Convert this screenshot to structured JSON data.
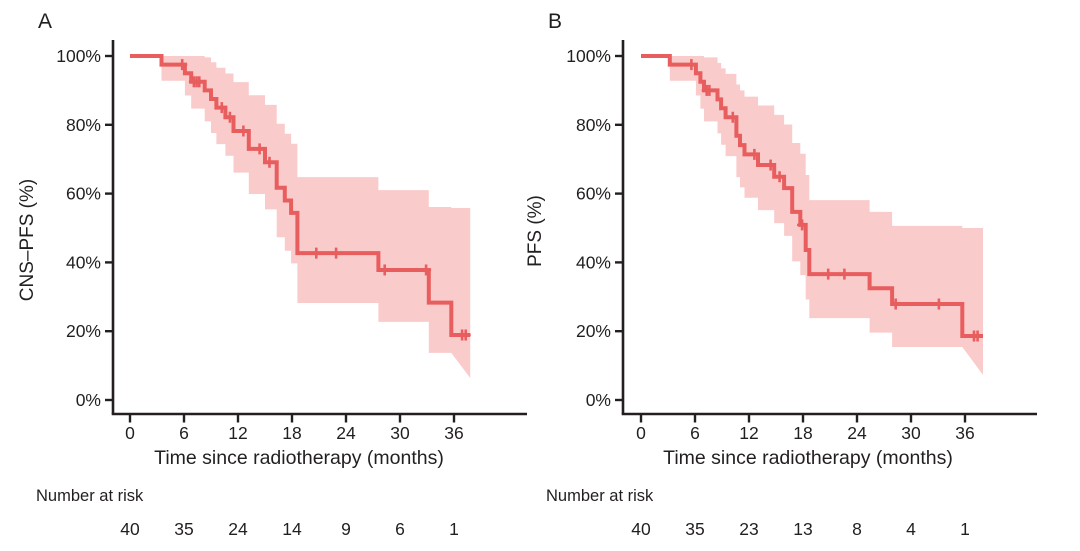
{
  "figure": {
    "background": "#ffffff",
    "text_color": "#231f20",
    "axis_color": "#231f20",
    "curve_color": "#e85d5e",
    "band_color": "#facbcb"
  },
  "chart_data": [
    {
      "type": "line",
      "subtype": "kaplan-meier-step",
      "panel_letter": "A",
      "ylabel": "CNS–PFS (%)",
      "xlabel": "Time since radiotherapy (months)",
      "risk_label": "Number at risk",
      "xlim": [
        0,
        38
      ],
      "ylim": [
        0,
        100
      ],
      "x_ticks": [
        0,
        6,
        12,
        18,
        24,
        30,
        36
      ],
      "y_ticks": [
        0,
        20,
        40,
        60,
        80,
        100
      ],
      "y_tick_labels": [
        "0%",
        "20%",
        "40%",
        "60%",
        "80%",
        "100%"
      ],
      "grid": false,
      "legend": "none",
      "steps": [
        [
          0,
          100
        ],
        [
          3.5,
          97.5
        ],
        [
          6.1,
          95.0
        ],
        [
          6.8,
          92.5
        ],
        [
          8.3,
          90.0
        ],
        [
          9.0,
          87.5
        ],
        [
          9.6,
          85.0
        ],
        [
          10.6,
          82.2
        ],
        [
          11.5,
          78.2
        ],
        [
          13.2,
          73.0
        ],
        [
          15.0,
          69.1
        ],
        [
          16.3,
          61.7
        ],
        [
          17.2,
          58.0
        ],
        [
          17.9,
          54.4
        ],
        [
          18.6,
          42.7
        ],
        [
          27.6,
          37.8
        ],
        [
          33.2,
          28.3
        ],
        [
          35.7,
          18.9
        ]
      ],
      "end_time": 37.8,
      "censors": [
        [
          5.8,
          97.5
        ],
        [
          7.1,
          92.5
        ],
        [
          7.4,
          92.5
        ],
        [
          7.7,
          92.5
        ],
        [
          10.2,
          85.0
        ],
        [
          11.1,
          82.2
        ],
        [
          12.6,
          78.2
        ],
        [
          14.4,
          73.0
        ],
        [
          15.5,
          69.1
        ],
        [
          20.7,
          42.7
        ],
        [
          22.9,
          42.7
        ],
        [
          28.3,
          37.8
        ],
        [
          32.9,
          37.8
        ],
        [
          36.9,
          18.9
        ],
        [
          37.3,
          18.9
        ]
      ],
      "ci": [
        [
          3.5,
          92.8,
          100
        ],
        [
          6.1,
          88.5,
          100
        ],
        [
          6.8,
          84.7,
          100
        ],
        [
          8.3,
          81.0,
          99.6
        ],
        [
          9.0,
          77.6,
          98.2
        ],
        [
          9.6,
          74.4,
          96.6
        ],
        [
          10.6,
          71.0,
          94.9
        ],
        [
          11.5,
          66.1,
          92.4
        ],
        [
          13.2,
          59.9,
          88.6
        ],
        [
          15.0,
          55.4,
          85.8
        ],
        [
          16.3,
          47.3,
          80.3
        ],
        [
          17.2,
          43.4,
          77.4
        ],
        [
          17.9,
          39.7,
          74.5
        ],
        [
          18.6,
          28.2,
          64.8
        ],
        [
          27.6,
          22.7,
          61.0
        ],
        [
          33.2,
          13.7,
          56.1
        ],
        [
          35.7,
          6.4,
          55.8
        ]
      ],
      "number_at_risk": {
        "times": [
          0,
          6,
          12,
          18,
          24,
          30,
          36
        ],
        "counts": [
          40,
          35,
          24,
          14,
          9,
          6,
          1
        ]
      }
    },
    {
      "type": "line",
      "subtype": "kaplan-meier-step",
      "panel_letter": "B",
      "ylabel": "PFS (%)",
      "xlabel": "Time since radiotherapy (months)",
      "risk_label": "Number at risk",
      "xlim": [
        0,
        38
      ],
      "ylim": [
        0,
        100
      ],
      "x_ticks": [
        0,
        6,
        12,
        18,
        24,
        30,
        36
      ],
      "y_ticks": [
        0,
        20,
        40,
        60,
        80,
        100
      ],
      "y_tick_labels": [
        "0%",
        "20%",
        "40%",
        "60%",
        "80%",
        "100%"
      ],
      "grid": false,
      "legend": "none",
      "steps": [
        [
          0,
          100
        ],
        [
          3.2,
          97.5
        ],
        [
          6.1,
          95.0
        ],
        [
          6.6,
          92.5
        ],
        [
          7.0,
          90.0
        ],
        [
          8.5,
          87.4
        ],
        [
          8.9,
          84.8
        ],
        [
          9.4,
          82.2
        ],
        [
          10.6,
          76.8
        ],
        [
          11.0,
          74.1
        ],
        [
          11.5,
          71.4
        ],
        [
          13.0,
          68.3
        ],
        [
          14.8,
          64.9
        ],
        [
          15.9,
          61.6
        ],
        [
          16.8,
          54.7
        ],
        [
          17.7,
          50.9
        ],
        [
          18.3,
          43.6
        ],
        [
          18.7,
          36.6
        ],
        [
          25.4,
          32.5
        ],
        [
          27.9,
          27.9
        ],
        [
          35.7,
          18.6
        ]
      ],
      "end_time": 38.0,
      "censors": [
        [
          5.6,
          97.5
        ],
        [
          7.3,
          90.0
        ],
        [
          7.6,
          90.0
        ],
        [
          10.2,
          82.2
        ],
        [
          12.6,
          71.4
        ],
        [
          14.4,
          68.3
        ],
        [
          15.4,
          64.9
        ],
        [
          17.9,
          50.9
        ],
        [
          20.8,
          36.6
        ],
        [
          22.6,
          36.6
        ],
        [
          28.3,
          27.9
        ],
        [
          33.1,
          27.9
        ],
        [
          37.0,
          18.6
        ],
        [
          37.4,
          18.6
        ]
      ],
      "ci": [
        [
          3.2,
          92.8,
          100
        ],
        [
          6.1,
          88.5,
          100
        ],
        [
          6.6,
          84.7,
          100
        ],
        [
          7.0,
          81.0,
          99.6
        ],
        [
          8.5,
          77.5,
          98.0
        ],
        [
          8.9,
          74.2,
          96.4
        ],
        [
          9.4,
          70.9,
          94.8
        ],
        [
          10.6,
          64.8,
          91.7
        ],
        [
          11.0,
          61.8,
          90.0
        ],
        [
          11.5,
          58.8,
          88.2
        ],
        [
          13.0,
          55.2,
          85.6
        ],
        [
          14.8,
          51.4,
          82.9
        ],
        [
          15.9,
          47.7,
          80.1
        ],
        [
          16.8,
          40.3,
          74.7
        ],
        [
          17.7,
          36.3,
          71.6
        ],
        [
          18.3,
          29.2,
          65.4
        ],
        [
          18.7,
          23.8,
          58.1
        ],
        [
          25.4,
          19.6,
          54.7
        ],
        [
          27.9,
          15.4,
          50.6
        ],
        [
          35.7,
          7.3,
          50.0
        ]
      ],
      "number_at_risk": {
        "times": [
          0,
          6,
          12,
          18,
          24,
          30,
          36
        ],
        "counts": [
          40,
          35,
          23,
          13,
          8,
          4,
          1
        ]
      }
    }
  ]
}
